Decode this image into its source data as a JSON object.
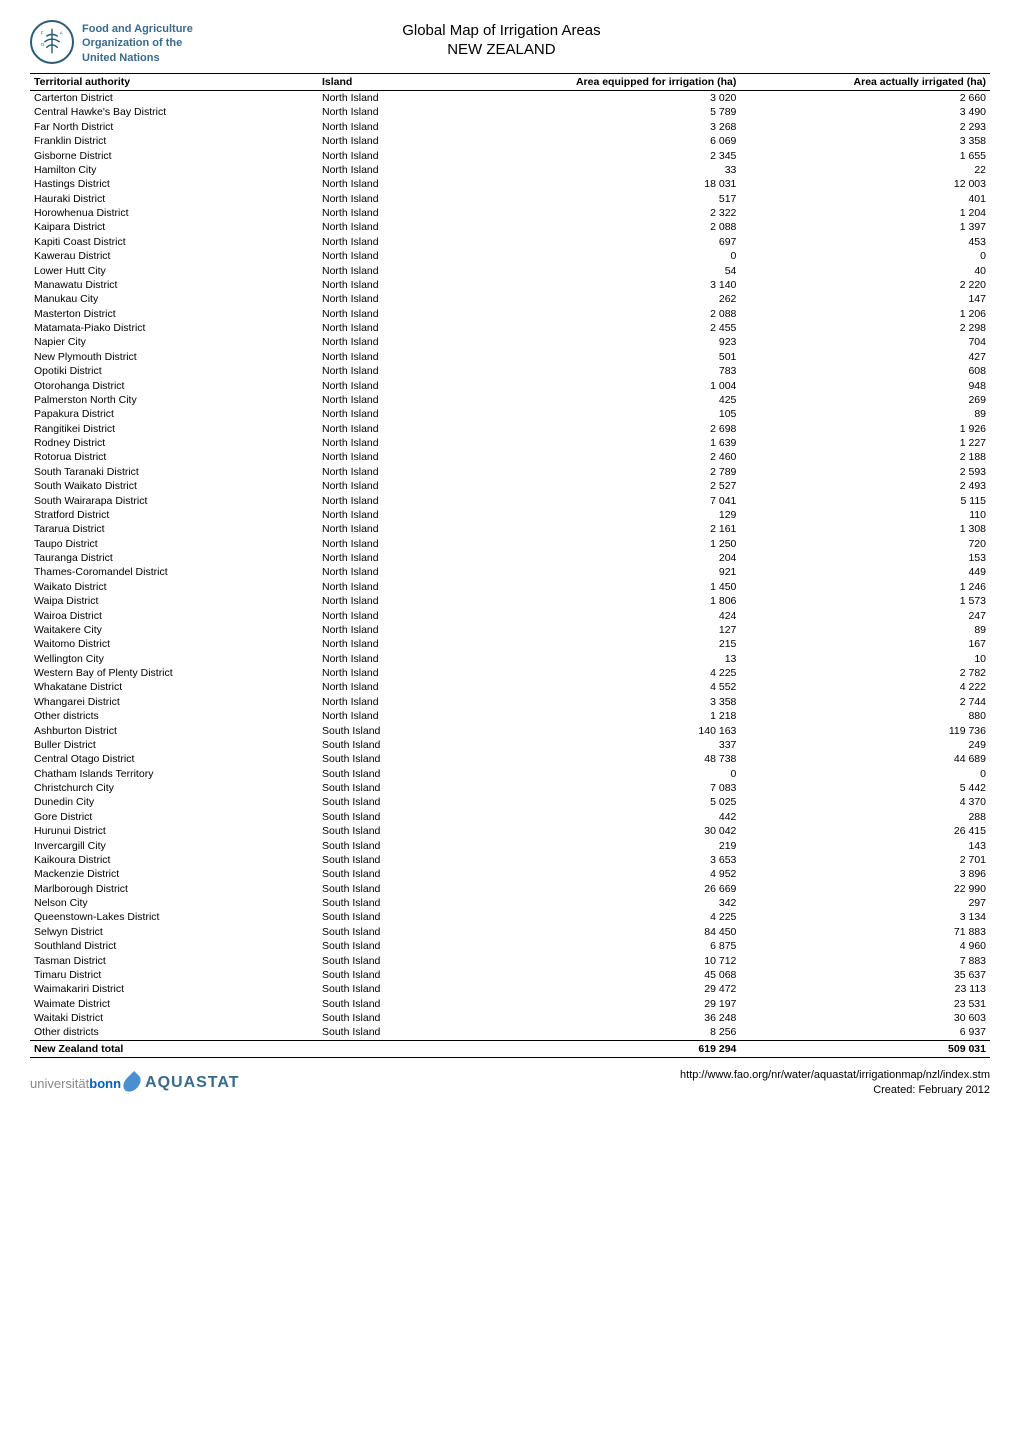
{
  "header": {
    "org_line1": "Food and Agriculture",
    "org_line2": "Organization of the",
    "org_line3": "United Nations",
    "title_main": "Global Map of Irrigation Areas",
    "title_country": "NEW ZEALAND"
  },
  "table": {
    "columns": [
      {
        "key": "territory",
        "label": "Territorial authority",
        "align": "left"
      },
      {
        "key": "island",
        "label": "Island",
        "align": "left"
      },
      {
        "key": "equipped",
        "label": "Area equipped for irrigation (ha)",
        "align": "right"
      },
      {
        "key": "irrigated",
        "label": "Area actually irrigated (ha)",
        "align": "right"
      }
    ],
    "rows": [
      {
        "territory": "Carterton District",
        "island": "North Island",
        "equipped": "3 020",
        "irrigated": "2 660"
      },
      {
        "territory": "Central Hawke's Bay District",
        "island": "North Island",
        "equipped": "5 789",
        "irrigated": "3 490"
      },
      {
        "territory": "Far North District",
        "island": "North Island",
        "equipped": "3 268",
        "irrigated": "2 293"
      },
      {
        "territory": "Franklin District",
        "island": "North Island",
        "equipped": "6 069",
        "irrigated": "3 358"
      },
      {
        "territory": "Gisborne District",
        "island": "North Island",
        "equipped": "2 345",
        "irrigated": "1 655"
      },
      {
        "territory": "Hamilton City",
        "island": "North Island",
        "equipped": "33",
        "irrigated": "22"
      },
      {
        "territory": "Hastings District",
        "island": "North Island",
        "equipped": "18 031",
        "irrigated": "12 003"
      },
      {
        "territory": "Hauraki District",
        "island": "North Island",
        "equipped": "517",
        "irrigated": "401"
      },
      {
        "territory": "Horowhenua District",
        "island": "North Island",
        "equipped": "2 322",
        "irrigated": "1 204"
      },
      {
        "territory": "Kaipara District",
        "island": "North Island",
        "equipped": "2 088",
        "irrigated": "1 397"
      },
      {
        "territory": "Kapiti Coast District",
        "island": "North Island",
        "equipped": "697",
        "irrigated": "453"
      },
      {
        "territory": "Kawerau District",
        "island": "North Island",
        "equipped": "0",
        "irrigated": "0"
      },
      {
        "territory": "Lower Hutt City",
        "island": "North Island",
        "equipped": "54",
        "irrigated": "40"
      },
      {
        "territory": "Manawatu District",
        "island": "North Island",
        "equipped": "3 140",
        "irrigated": "2 220"
      },
      {
        "territory": "Manukau City",
        "island": "North Island",
        "equipped": "262",
        "irrigated": "147"
      },
      {
        "territory": "Masterton District",
        "island": "North Island",
        "equipped": "2 088",
        "irrigated": "1 206"
      },
      {
        "territory": "Matamata-Piako District",
        "island": "North Island",
        "equipped": "2 455",
        "irrigated": "2 298"
      },
      {
        "territory": "Napier City",
        "island": "North Island",
        "equipped": "923",
        "irrigated": "704"
      },
      {
        "territory": "New Plymouth District",
        "island": "North Island",
        "equipped": "501",
        "irrigated": "427"
      },
      {
        "territory": "Opotiki District",
        "island": "North Island",
        "equipped": "783",
        "irrigated": "608"
      },
      {
        "territory": "Otorohanga District",
        "island": "North Island",
        "equipped": "1 004",
        "irrigated": "948"
      },
      {
        "territory": "Palmerston North City",
        "island": "North Island",
        "equipped": "425",
        "irrigated": "269"
      },
      {
        "territory": "Papakura District",
        "island": "North Island",
        "equipped": "105",
        "irrigated": "89"
      },
      {
        "territory": "Rangitikei District",
        "island": "North Island",
        "equipped": "2 698",
        "irrigated": "1 926"
      },
      {
        "territory": "Rodney District",
        "island": "North Island",
        "equipped": "1 639",
        "irrigated": "1 227"
      },
      {
        "territory": "Rotorua District",
        "island": "North Island",
        "equipped": "2 460",
        "irrigated": "2 188"
      },
      {
        "territory": "South Taranaki District",
        "island": "North Island",
        "equipped": "2 789",
        "irrigated": "2 593"
      },
      {
        "territory": "South Waikato District",
        "island": "North Island",
        "equipped": "2 527",
        "irrigated": "2 493"
      },
      {
        "territory": "South Wairarapa District",
        "island": "North Island",
        "equipped": "7 041",
        "irrigated": "5 115"
      },
      {
        "territory": "Stratford District",
        "island": "North Island",
        "equipped": "129",
        "irrigated": "110"
      },
      {
        "territory": "Tararua District",
        "island": "North Island",
        "equipped": "2 161",
        "irrigated": "1 308"
      },
      {
        "territory": "Taupo District",
        "island": "North Island",
        "equipped": "1 250",
        "irrigated": "720"
      },
      {
        "territory": "Tauranga District",
        "island": "North Island",
        "equipped": "204",
        "irrigated": "153"
      },
      {
        "territory": "Thames-Coromandel District",
        "island": "North Island",
        "equipped": "921",
        "irrigated": "449"
      },
      {
        "territory": "Waikato District",
        "island": "North Island",
        "equipped": "1 450",
        "irrigated": "1 246"
      },
      {
        "territory": "Waipa District",
        "island": "North Island",
        "equipped": "1 806",
        "irrigated": "1 573"
      },
      {
        "territory": "Wairoa District",
        "island": "North Island",
        "equipped": "424",
        "irrigated": "247"
      },
      {
        "territory": "Waitakere City",
        "island": "North Island",
        "equipped": "127",
        "irrigated": "89"
      },
      {
        "territory": "Waitomo District",
        "island": "North Island",
        "equipped": "215",
        "irrigated": "167"
      },
      {
        "territory": "Wellington City",
        "island": "North Island",
        "equipped": "13",
        "irrigated": "10"
      },
      {
        "territory": "Western Bay of Plenty District",
        "island": "North Island",
        "equipped": "4 225",
        "irrigated": "2 782"
      },
      {
        "territory": "Whakatane District",
        "island": "North Island",
        "equipped": "4 552",
        "irrigated": "4 222"
      },
      {
        "territory": "Whangarei District",
        "island": "North Island",
        "equipped": "3 358",
        "irrigated": "2 744"
      },
      {
        "territory": "Other districts",
        "island": "North Island",
        "equipped": "1 218",
        "irrigated": "880"
      },
      {
        "territory": "Ashburton District",
        "island": "South Island",
        "equipped": "140 163",
        "irrigated": "119 736"
      },
      {
        "territory": "Buller District",
        "island": "South Island",
        "equipped": "337",
        "irrigated": "249"
      },
      {
        "territory": "Central Otago District",
        "island": "South Island",
        "equipped": "48 738",
        "irrigated": "44 689"
      },
      {
        "territory": "Chatham Islands Territory",
        "island": "South Island",
        "equipped": "0",
        "irrigated": "0"
      },
      {
        "territory": "Christchurch City",
        "island": "South Island",
        "equipped": "7 083",
        "irrigated": "5 442"
      },
      {
        "territory": "Dunedin City",
        "island": "South Island",
        "equipped": "5 025",
        "irrigated": "4 370"
      },
      {
        "territory": "Gore District",
        "island": "South Island",
        "equipped": "442",
        "irrigated": "288"
      },
      {
        "territory": "Hurunui District",
        "island": "South Island",
        "equipped": "30 042",
        "irrigated": "26 415"
      },
      {
        "territory": "Invercargill City",
        "island": "South Island",
        "equipped": "219",
        "irrigated": "143"
      },
      {
        "territory": "Kaikoura District",
        "island": "South Island",
        "equipped": "3 653",
        "irrigated": "2 701"
      },
      {
        "territory": "Mackenzie District",
        "island": "South Island",
        "equipped": "4 952",
        "irrigated": "3 896"
      },
      {
        "territory": "Marlborough District",
        "island": "South Island",
        "equipped": "26 669",
        "irrigated": "22 990"
      },
      {
        "territory": "Nelson City",
        "island": "South Island",
        "equipped": "342",
        "irrigated": "297"
      },
      {
        "territory": "Queenstown-Lakes District",
        "island": "South Island",
        "equipped": "4 225",
        "irrigated": "3 134"
      },
      {
        "territory": "Selwyn District",
        "island": "South Island",
        "equipped": "84 450",
        "irrigated": "71 883"
      },
      {
        "territory": "Southland District",
        "island": "South Island",
        "equipped": "6 875",
        "irrigated": "4 960"
      },
      {
        "territory": "Tasman District",
        "island": "South Island",
        "equipped": "10 712",
        "irrigated": "7 883"
      },
      {
        "territory": "Timaru District",
        "island": "South Island",
        "equipped": "45 068",
        "irrigated": "35 637"
      },
      {
        "territory": "Waimakariri District",
        "island": "South Island",
        "equipped": "29 472",
        "irrigated": "23 113"
      },
      {
        "territory": "Waimate District",
        "island": "South Island",
        "equipped": "29 197",
        "irrigated": "23 531"
      },
      {
        "territory": "Waitaki District",
        "island": "South Island",
        "equipped": "36 248",
        "irrigated": "30 603"
      },
      {
        "territory": "Other districts",
        "island": "South Island",
        "equipped": "8 256",
        "irrigated": "6 937"
      }
    ],
    "footer": {
      "label": "New Zealand total",
      "equipped": "619 294",
      "irrigated": "509 031"
    }
  },
  "footer": {
    "uni_prefix": "universität",
    "uni_bonn": "bonn",
    "aquastat": "AQUASTAT",
    "url": "http://www.fao.org/nr/water/aquastat/irrigationmap/nzl/index.stm",
    "created": "Created: February 2012"
  },
  "colors": {
    "text": "#000000",
    "background": "#ffffff",
    "org_blue": "#3a6a8a",
    "uni_grey": "#888888",
    "uni_bonn_blue": "#0060c0",
    "drop_blue": "#4a90d0",
    "border": "#000000"
  }
}
